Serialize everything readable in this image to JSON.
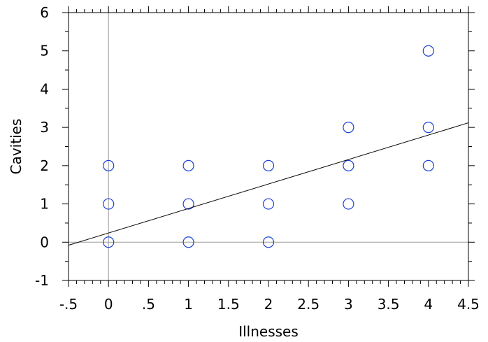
{
  "chart_data": {
    "type": "scatter",
    "title": "",
    "xlabel": "Illnesses",
    "ylabel": "Cavities",
    "xlim": [
      -0.5,
      4.5
    ],
    "ylim": [
      -1,
      6
    ],
    "x_ticks": [
      {
        "value": -0.5,
        "label": "-.5"
      },
      {
        "value": 0,
        "label": "0"
      },
      {
        "value": 0.5,
        "label": ".5"
      },
      {
        "value": 1,
        "label": "1"
      },
      {
        "value": 1.5,
        "label": "1.5"
      },
      {
        "value": 2,
        "label": "2"
      },
      {
        "value": 2.5,
        "label": "2.5"
      },
      {
        "value": 3,
        "label": "3"
      },
      {
        "value": 3.5,
        "label": "3.5"
      },
      {
        "value": 4,
        "label": "4"
      },
      {
        "value": 4.5,
        "label": "4.5"
      }
    ],
    "y_ticks": [
      {
        "value": -1,
        "label": "-1"
      },
      {
        "value": 0,
        "label": "0"
      },
      {
        "value": 1,
        "label": "1"
      },
      {
        "value": 2,
        "label": "2"
      },
      {
        "value": 3,
        "label": "3"
      },
      {
        "value": 4,
        "label": "4"
      },
      {
        "value": 5,
        "label": "5"
      },
      {
        "value": 6,
        "label": "6"
      }
    ],
    "points": [
      {
        "x": 0,
        "y": 0
      },
      {
        "x": 0,
        "y": 1
      },
      {
        "x": 0,
        "y": 2
      },
      {
        "x": 1,
        "y": 0
      },
      {
        "x": 1,
        "y": 1
      },
      {
        "x": 1,
        "y": 2
      },
      {
        "x": 2,
        "y": 0
      },
      {
        "x": 2,
        "y": 1
      },
      {
        "x": 2,
        "y": 2
      },
      {
        "x": 3,
        "y": 1
      },
      {
        "x": 3,
        "y": 2
      },
      {
        "x": 3,
        "y": 3
      },
      {
        "x": 4,
        "y": 2
      },
      {
        "x": 4,
        "y": 3
      },
      {
        "x": 4,
        "y": 5
      }
    ],
    "fit_line": {
      "intercept": 0.24,
      "slope": 0.64
    },
    "grid": false,
    "reference_lines": {
      "x_zero": true,
      "y_zero": true
    },
    "colors": {
      "marker": "#1a3fd6",
      "axis": "#000000",
      "reference": "#9a9a9a",
      "fit": "#000000"
    }
  }
}
